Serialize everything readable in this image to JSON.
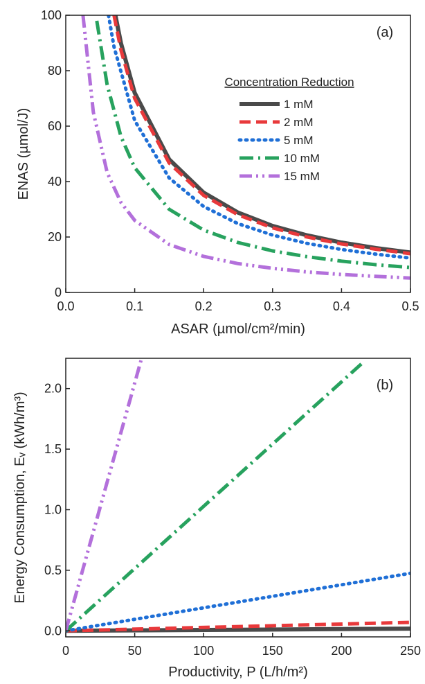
{
  "chart_data": [
    {
      "type": "line",
      "panel_label": "(a)",
      "xlabel": "ASAR (µmol/cm²/min)",
      "ylabel": "ENAS (µmol/J)",
      "xlim": [
        0,
        0.5
      ],
      "ylim": [
        0,
        100
      ],
      "x_ticks": [
        "0.0",
        "0.1",
        "0.2",
        "0.3",
        "0.4",
        "0.5"
      ],
      "y_ticks": [
        "0",
        "20",
        "40",
        "60",
        "80",
        "100"
      ],
      "grid": false,
      "legend": {
        "title": "Concentration Reduction",
        "placement": "center-right"
      },
      "series": [
        {
          "name": "1 mM",
          "color": "#4a4a4a",
          "style": "solid",
          "points": [
            [
              0.072,
              100
            ],
            [
              0.08,
              90
            ],
            [
              0.1,
              72
            ],
            [
              0.15,
              48
            ],
            [
              0.2,
              36
            ],
            [
              0.25,
              28.8
            ],
            [
              0.3,
              24
            ],
            [
              0.35,
              20.6
            ],
            [
              0.4,
              18
            ],
            [
              0.45,
              16
            ],
            [
              0.5,
              14.4
            ]
          ]
        },
        {
          "name": "2 mM",
          "color": "#e8393b",
          "style": "dash",
          "points": [
            [
              0.07,
              100
            ],
            [
              0.08,
              87.5
            ],
            [
              0.1,
              70
            ],
            [
              0.15,
              46.7
            ],
            [
              0.2,
              35
            ],
            [
              0.25,
              28
            ],
            [
              0.3,
              23.3
            ],
            [
              0.35,
              20
            ],
            [
              0.4,
              17.5
            ],
            [
              0.45,
              15.6
            ],
            [
              0.5,
              14
            ]
          ]
        },
        {
          "name": "5 mM",
          "color": "#1f6fd6",
          "style": "dot",
          "points": [
            [
              0.062,
              100
            ],
            [
              0.07,
              88.6
            ],
            [
              0.1,
              62
            ],
            [
              0.15,
              41.3
            ],
            [
              0.2,
              31
            ],
            [
              0.25,
              24.8
            ],
            [
              0.3,
              20.7
            ],
            [
              0.35,
              17.7
            ],
            [
              0.4,
              15.5
            ],
            [
              0.45,
              13.8
            ],
            [
              0.5,
              12.4
            ]
          ]
        },
        {
          "name": "10 mM",
          "color": "#27a25e",
          "style": "dashdot",
          "points": [
            [
              0.045,
              98
            ],
            [
              0.06,
              75
            ],
            [
              0.08,
              56.3
            ],
            [
              0.1,
              45
            ],
            [
              0.15,
              30
            ],
            [
              0.2,
              22.5
            ],
            [
              0.25,
              18
            ],
            [
              0.3,
              15
            ],
            [
              0.35,
              12.9
            ],
            [
              0.4,
              11.3
            ],
            [
              0.45,
              10
            ],
            [
              0.5,
              9
            ]
          ]
        },
        {
          "name": "15 mM",
          "color": "#b370db",
          "style": "dashdotdot",
          "points": [
            [
              0.025,
              100
            ],
            [
              0.04,
              65
            ],
            [
              0.06,
              43.3
            ],
            [
              0.08,
              32.5
            ],
            [
              0.1,
              26
            ],
            [
              0.15,
              17.3
            ],
            [
              0.2,
              13
            ],
            [
              0.25,
              10.4
            ],
            [
              0.3,
              8.7
            ],
            [
              0.35,
              7.4
            ],
            [
              0.4,
              6.5
            ],
            [
              0.45,
              5.8
            ],
            [
              0.5,
              5.2
            ]
          ]
        }
      ]
    },
    {
      "type": "line",
      "panel_label": "(b)",
      "xlabel": "Productivity, P (L/h/m²)",
      "ylabel": "Energy Consumption, Eᵥ (kWh/m³)",
      "xlim": [
        0,
        250
      ],
      "ylim": [
        -0.05,
        2.25
      ],
      "x_ticks": [
        "0",
        "50",
        "100",
        "150",
        "200",
        "250"
      ],
      "y_ticks": [
        "0.0",
        "0.5",
        "1.0",
        "1.5",
        "2.0"
      ],
      "grid": false,
      "series": [
        {
          "name": "1 mM",
          "color": "#4a4a4a",
          "style": "solid",
          "points": [
            [
              0,
              0
            ],
            [
              250,
              0.018
            ]
          ]
        },
        {
          "name": "2 mM",
          "color": "#e8393b",
          "style": "dash",
          "points": [
            [
              0,
              0
            ],
            [
              250,
              0.07
            ]
          ]
        },
        {
          "name": "5 mM",
          "color": "#1f6fd6",
          "style": "dot",
          "points": [
            [
              0,
              0
            ],
            [
              250,
              0.475
            ]
          ]
        },
        {
          "name": "10 mM",
          "color": "#27a25e",
          "style": "dashdot",
          "points": [
            [
              0,
              0
            ],
            [
              216,
              2.22
            ]
          ]
        },
        {
          "name": "15 mM",
          "color": "#b370db",
          "style": "dashdotdot",
          "points": [
            [
              0,
              0
            ],
            [
              55,
              2.25
            ]
          ]
        }
      ]
    }
  ]
}
